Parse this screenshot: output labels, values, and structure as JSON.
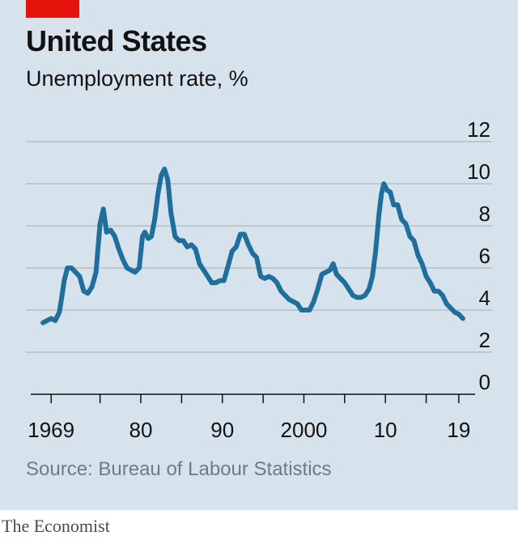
{
  "header": {
    "title": "United States",
    "subtitle": "Unemployment rate, %"
  },
  "footer": {
    "source": "Source: Bureau of Labour Statistics",
    "brand": "The Economist"
  },
  "colors": {
    "background": "#d6e3ec",
    "line": "#1f6e9c",
    "accent": "#e3120b"
  },
  "chart_data": {
    "type": "line",
    "title": "United States",
    "subtitle": "Unemployment rate, %",
    "ylabel": "",
    "xlabel": "",
    "ylim": [
      0,
      12
    ],
    "xlim": [
      1966.5,
      2021
    ],
    "yticks": [
      0,
      2,
      4,
      6,
      8,
      10,
      12
    ],
    "xtick_values": [
      1969,
      1980,
      1990,
      2000,
      2010,
      2019
    ],
    "xtick_labels": [
      "1969",
      "80",
      "90",
      "2000",
      "10",
      "19"
    ],
    "xtick_marks_minor": [
      1975,
      1985,
      1995,
      2005,
      2015
    ],
    "grid": true,
    "series": [
      {
        "values_x": [
          1968.0,
          1968.5,
          1969.0,
          1969.5,
          1970.0,
          1970.3,
          1970.6,
          1971.0,
          1971.5,
          1972.0,
          1972.5,
          1973.0,
          1973.5,
          1974.0,
          1974.5,
          1975.0,
          1975.4,
          1975.8,
          1976.3,
          1976.8,
          1977.3,
          1977.8,
          1978.3,
          1978.8,
          1979.3,
          1979.8,
          1980.2,
          1980.5,
          1980.9,
          1981.3,
          1981.7,
          1982.1,
          1982.5,
          1982.9,
          1983.3,
          1983.7,
          1984.2,
          1984.7,
          1985.2,
          1985.7,
          1986.2,
          1986.7,
          1987.2,
          1987.7,
          1988.2,
          1988.7,
          1989.2,
          1989.7,
          1990.2,
          1990.7,
          1991.2,
          1991.7,
          1992.2,
          1992.7,
          1993.2,
          1993.7,
          1994.2,
          1994.7,
          1995.2,
          1995.7,
          1996.2,
          1996.7,
          1997.2,
          1997.7,
          1998.2,
          1998.7,
          1999.2,
          1999.7,
          2000.2,
          2000.7,
          2001.2,
          2001.7,
          2002.2,
          2002.7,
          2003.2,
          2003.6,
          2004.0,
          2004.5,
          2005.0,
          2005.5,
          2006.0,
          2006.5,
          2007.0,
          2007.5,
          2008.0,
          2008.4,
          2008.8,
          2009.2,
          2009.5,
          2009.8,
          2010.2,
          2010.6,
          2011.0,
          2011.5,
          2012.0,
          2012.5,
          2013.0,
          2013.5,
          2014.0,
          2014.5,
          2015.0,
          2015.5,
          2016.0,
          2016.5,
          2017.0,
          2017.5,
          2018.0,
          2018.5,
          2019.0,
          2019.5
        ],
        "values_y": [
          3.4,
          3.5,
          3.6,
          3.5,
          3.9,
          4.6,
          5.4,
          6.0,
          6.0,
          5.8,
          5.6,
          4.9,
          4.8,
          5.1,
          5.8,
          8.1,
          8.8,
          7.7,
          7.8,
          7.5,
          6.9,
          6.4,
          6.0,
          5.9,
          5.8,
          6.0,
          7.5,
          7.7,
          7.4,
          7.5,
          8.3,
          9.5,
          10.4,
          10.7,
          10.2,
          8.6,
          7.5,
          7.3,
          7.3,
          7.0,
          7.1,
          6.9,
          6.2,
          5.9,
          5.6,
          5.3,
          5.3,
          5.4,
          5.4,
          6.1,
          6.8,
          7.0,
          7.6,
          7.6,
          7.1,
          6.7,
          6.5,
          5.6,
          5.5,
          5.6,
          5.5,
          5.3,
          4.9,
          4.7,
          4.5,
          4.4,
          4.3,
          4.0,
          4.0,
          4.0,
          4.4,
          5.0,
          5.7,
          5.8,
          5.9,
          6.2,
          5.7,
          5.5,
          5.3,
          5.0,
          4.7,
          4.6,
          4.6,
          4.7,
          5.0,
          5.6,
          6.8,
          8.5,
          9.5,
          10.0,
          9.7,
          9.6,
          9.0,
          9.0,
          8.3,
          8.1,
          7.5,
          7.3,
          6.6,
          6.2,
          5.6,
          5.3,
          4.9,
          4.9,
          4.7,
          4.3,
          4.1,
          3.9,
          3.8,
          3.6
        ]
      }
    ]
  }
}
